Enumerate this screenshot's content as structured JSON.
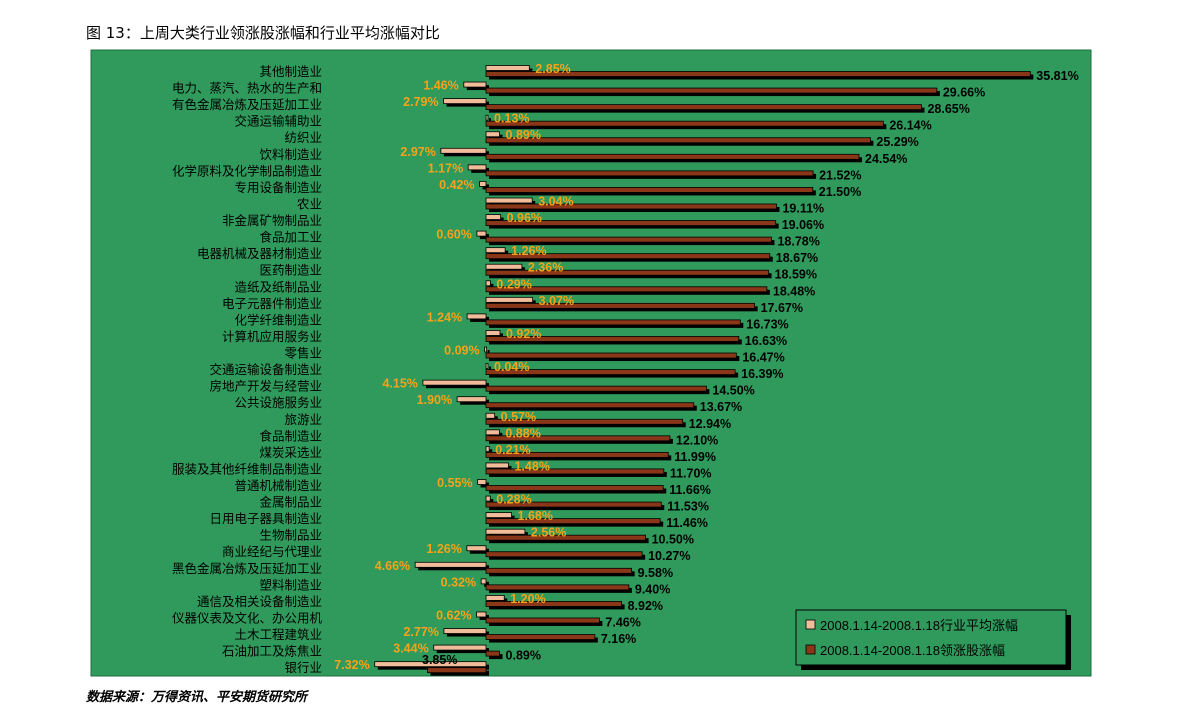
{
  "figure": {
    "title": "图 13：上周大类行业领涨股涨幅和行业平均涨幅对比",
    "source": "数据来源：万得资讯、平安期货研究所"
  },
  "colors": {
    "plot_bg": "#2f9a5c",
    "avg_bar": "#f0bc9a",
    "lead_bar": "#8a3618",
    "avg_label": "#f5a31a",
    "lead_label": "#000000",
    "shadow": "#000000"
  },
  "chart_data": {
    "type": "bar",
    "orientation": "horizontal",
    "categories": [
      "其他制造业",
      "电力、蒸汽、热水的生产和",
      "有色金属冶炼及压延加工业",
      "交通运输辅助业",
      "纺织业",
      "饮料制造业",
      "化学原料及化学制品制造业",
      "专用设备制造业",
      "农业",
      "非金属矿物制品业",
      "食品加工业",
      "电器机械及器材制造业",
      "医药制造业",
      "造纸及纸制品业",
      "电子元器件制造业",
      "化学纤维制造业",
      "计算机应用服务业",
      "零售业",
      "交通运输设备制造业",
      "房地产开发与经营业",
      "公共设施服务业",
      "旅游业",
      "食品制造业",
      "煤炭采选业",
      "服装及其他纤维制品制造业",
      "普通机械制造业",
      "金属制品业",
      "日用电子器具制造业",
      "生物制品业",
      "商业经纪与代理业",
      "黑色金属冶炼及压延加工业",
      "塑料制造业",
      "通信及相关设备制造业",
      "仪器仪表及文化、办公用机",
      "土木工程建筑业",
      "石油加工及炼焦业",
      "银行业"
    ],
    "series": [
      {
        "name": "2008.1.14-2008.1.18行业平均涨幅",
        "values": [
          2.85,
          -1.46,
          -2.79,
          0.13,
          0.89,
          -2.97,
          -1.17,
          -0.42,
          3.04,
          0.96,
          -0.6,
          1.26,
          2.36,
          0.29,
          3.07,
          -1.24,
          0.92,
          -0.09,
          0.04,
          -4.15,
          -1.9,
          0.57,
          0.88,
          0.21,
          1.48,
          -0.55,
          0.28,
          1.68,
          2.56,
          -1.26,
          -4.66,
          -0.32,
          1.2,
          -0.62,
          -2.77,
          -3.44,
          -7.32
        ],
        "labels": [
          "2.85%",
          "1.46%",
          "2.79%",
          "0.13%",
          "0.89%",
          "2.97%",
          "1.17%",
          "0.42%",
          "3.04%",
          "0.96%",
          "0.60%",
          "1.26%",
          "2.36%",
          "0.29%",
          "3.07%",
          "1.24%",
          "0.92%",
          "0.09%",
          "0.04%",
          "4.15%",
          "1.90%",
          "0.57%",
          "0.88%",
          "0.21%",
          "1.48%",
          "0.55%",
          "0.28%",
          "1.68%",
          "2.56%",
          "1.26%",
          "4.66%",
          "0.32%",
          "1.20%",
          "0.62%",
          "2.77%",
          "3.44%",
          "7.32%"
        ]
      },
      {
        "name": "2008.1.14-2008.1.18领涨股涨幅",
        "values": [
          35.81,
          29.66,
          28.65,
          26.14,
          25.29,
          24.54,
          21.52,
          21.5,
          19.11,
          19.06,
          18.78,
          18.67,
          18.59,
          18.48,
          17.67,
          16.73,
          16.63,
          16.47,
          16.39,
          14.5,
          13.67,
          12.94,
          12.1,
          11.99,
          11.7,
          11.66,
          11.53,
          11.46,
          10.5,
          10.27,
          9.58,
          9.4,
          8.92,
          7.46,
          7.16,
          0.89,
          -3.85
        ],
        "labels": [
          "35.81%",
          "29.66%",
          "28.65%",
          "26.14%",
          "25.29%",
          "24.54%",
          "21.52%",
          "21.50%",
          "19.11%",
          "19.06%",
          "18.78%",
          "18.67%",
          "18.59%",
          "18.48%",
          "17.67%",
          "16.73%",
          "16.63%",
          "16.47%",
          "16.39%",
          "14.50%",
          "13.67%",
          "12.94%",
          "12.10%",
          "11.99%",
          "11.70%",
          "11.66%",
          "11.53%",
          "11.46%",
          "10.50%",
          "10.27%",
          "9.58%",
          "9.40%",
          "8.92%",
          "7.46%",
          "7.16%",
          "0.89%",
          "3.85%"
        ]
      }
    ],
    "legend_position": "bottom-right",
    "grid": false
  }
}
